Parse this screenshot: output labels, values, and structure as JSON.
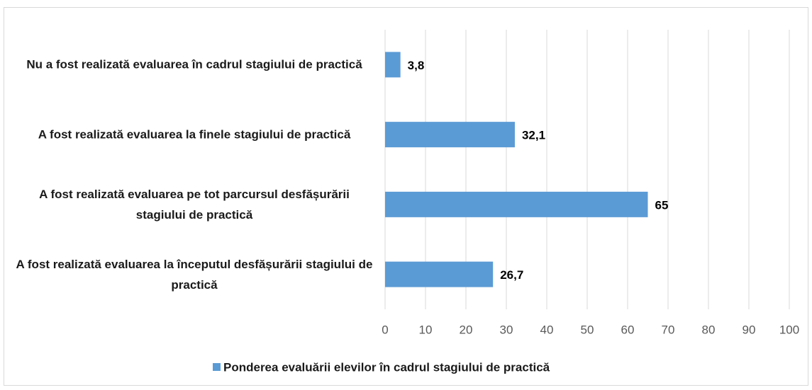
{
  "chart_data": {
    "type": "barh",
    "categories": [
      "Nu a fost realizată evaluarea în cadrul stagiului de practică",
      "A fost realizată evaluarea la finele stagiului de practică",
      "A fost realizată evaluarea pe tot parcursul desfășurării stagiului de practică",
      "A fost realizată evaluarea la începutul desfășurării stagiului de practică"
    ],
    "series": [
      {
        "name": "Ponderea evaluării elevilor în cadrul stagiului de practică",
        "color": "#5b9bd5",
        "values": [
          3.8,
          32.1,
          65,
          26.7
        ],
        "value_labels": [
          "3,8",
          "32,1",
          "65",
          "26,7"
        ]
      }
    ],
    "xlim": [
      0,
      100
    ],
    "xticks": [
      0,
      10,
      20,
      30,
      40,
      50,
      60,
      70,
      80,
      90,
      100
    ],
    "grid": true,
    "legend": "bottom"
  }
}
